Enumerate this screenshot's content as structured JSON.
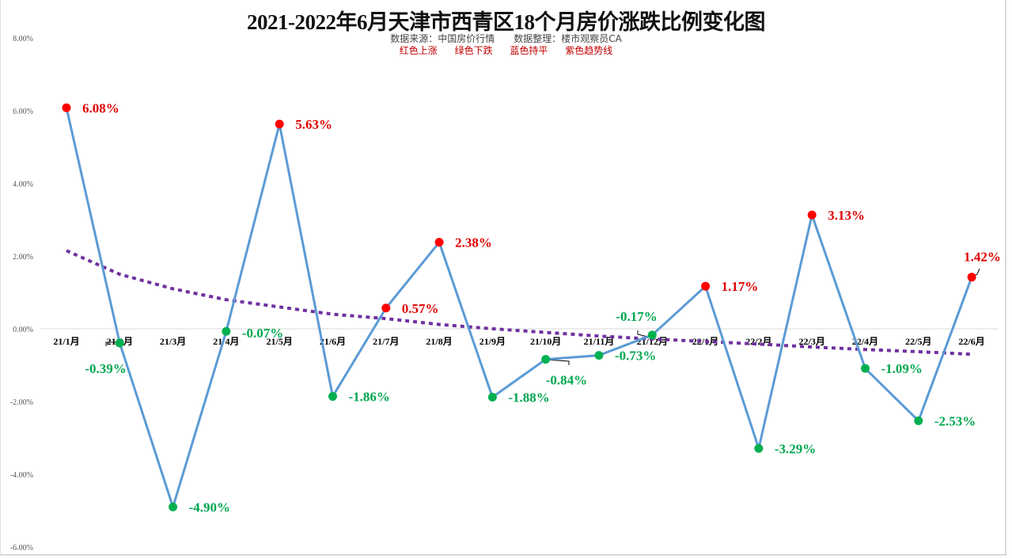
{
  "title": "2021-2022年6月天津市西青区18个月房价涨跌比例变化图",
  "subtitle": "数据来源：中国房价行情　　数据整理：楼市观察员CA",
  "legend": [
    {
      "label": "红色上涨",
      "color": "#e00000"
    },
    {
      "label": "绿色下跌",
      "color": "#00a650"
    },
    {
      "label": "蓝色持平",
      "color": "#5b9bd5"
    },
    {
      "label": "紫色趋势线",
      "color": "#7030a0"
    }
  ],
  "colors": {
    "up": "#ff0000",
    "down": "#00b050",
    "line": "#5b9bd5",
    "trend": "#7030a0",
    "up_label": "#e00000",
    "down_label": "#00a650"
  },
  "chart_data": {
    "type": "line",
    "title": "2021-2022年6月天津市西青区18个月房价涨跌比例变化图",
    "xlabel": "",
    "ylabel": "",
    "ylim": [
      -6,
      8
    ],
    "yticks": [
      "8.00%",
      "6.00%",
      "4.00%",
      "2.00%",
      "0.00%",
      "-2.00%",
      "-4.00%",
      "-6.00%"
    ],
    "grid": false,
    "categories": [
      "21/1月",
      "21/2月",
      "21/3月",
      "21/4月",
      "21/5月",
      "21/6月",
      "21/7月",
      "21/8月",
      "21/9月",
      "21/10月",
      "21/11月",
      "21/12月",
      "22/1月",
      "22/2月",
      "22/3月",
      "22/4月",
      "22/5月",
      "22/6月"
    ],
    "series": [
      {
        "name": "涨跌比例",
        "values": [
          6.08,
          -0.39,
          -4.9,
          -0.07,
          5.63,
          -1.86,
          0.57,
          2.38,
          -1.88,
          -0.84,
          -0.73,
          -0.17,
          1.17,
          -3.29,
          3.13,
          -1.09,
          -2.53,
          1.42
        ]
      },
      {
        "name": "趋势线",
        "type": "log-trend",
        "values": [
          2.15,
          1.5,
          1.1,
          0.8,
          0.6,
          0.4,
          0.28,
          0.12,
          0.0,
          -0.1,
          -0.2,
          -0.28,
          -0.35,
          -0.42,
          -0.5,
          -0.57,
          -0.63,
          -0.7
        ]
      }
    ],
    "data_labels": [
      "6.08%",
      "-0.39%",
      "-4.90%",
      "-0.07%",
      "5.63%",
      "-1.86%",
      "0.57%",
      "2.38%",
      "-1.88%",
      "-0.84%",
      "-0.73%",
      "-0.17%",
      "1.17%",
      "-3.29%",
      "3.13%",
      "-1.09%",
      "-2.53%",
      "1.42%"
    ]
  }
}
